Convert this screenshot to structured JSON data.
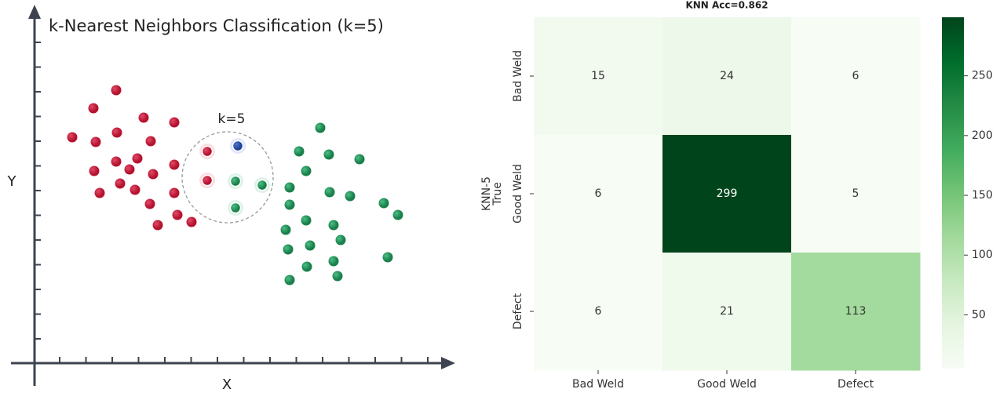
{
  "diagram": {
    "title": "k-Nearest Neighbors Classification (k=5)",
    "k_label": "k=5",
    "x_label": "X",
    "y_label": "Y"
  },
  "chart_data": {
    "type": "heatmap",
    "title": "KNN Acc=0.862",
    "y_label": [
      "KNN-5",
      "True"
    ],
    "x_categories": [
      "Bad Weld",
      "Good Weld",
      "Defect"
    ],
    "y_categories": [
      "Bad Weld",
      "Good Weld",
      "Defect"
    ],
    "values": [
      [
        15,
        24,
        6
      ],
      [
        6,
        299,
        5
      ],
      [
        6,
        21,
        113
      ]
    ],
    "clim": [
      5,
      299
    ],
    "cticks": [
      50,
      100,
      150,
      200,
      250
    ],
    "colormap": [
      "#f7fcf5",
      "#e5f5e0",
      "#c7e9c0",
      "#a1d99b",
      "#74c476",
      "#41ab5d",
      "#238b45",
      "#006d2c",
      "#00441b"
    ]
  }
}
